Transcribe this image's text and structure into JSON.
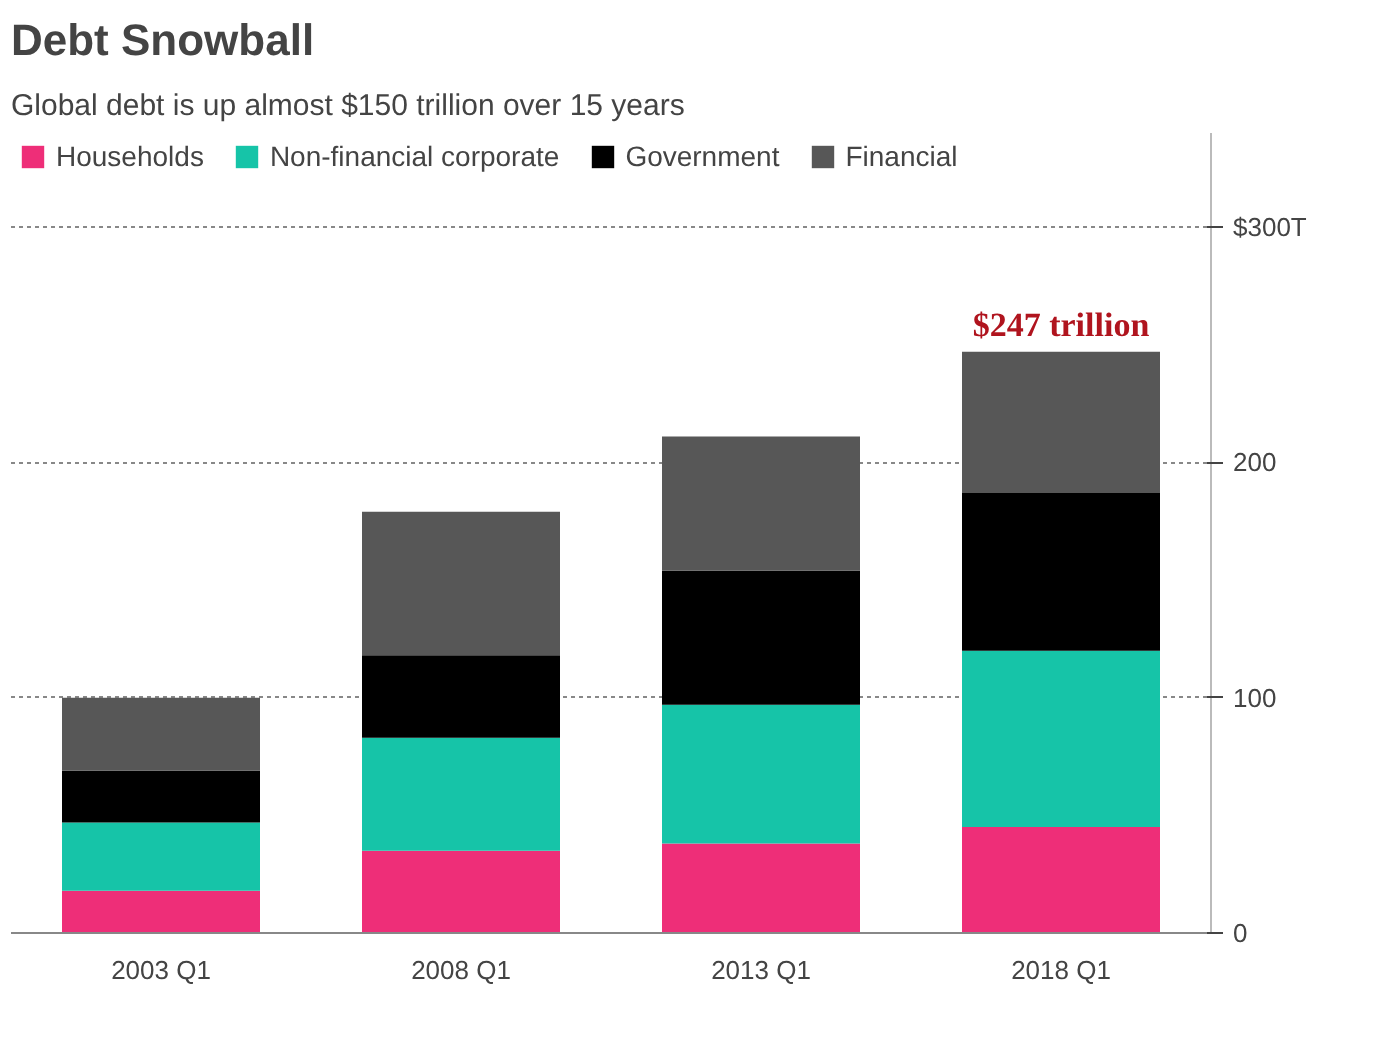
{
  "chart_data": {
    "type": "bar",
    "title": "Debt Snowball",
    "subtitle": "Global debt is up almost $150 trillion over 15 years",
    "categories": [
      "2003 Q1",
      "2008 Q1",
      "2013 Q1",
      "2018 Q1"
    ],
    "stacked": true,
    "series": [
      {
        "name": "Households",
        "color": "#ee2e78",
        "values": [
          18,
          35,
          38,
          45
        ]
      },
      {
        "name": "Non-financial corporate",
        "color": "#16c4a8",
        "values": [
          29,
          48,
          59,
          75
        ]
      },
      {
        "name": "Government",
        "color": "#000000",
        "values": [
          22,
          35,
          57,
          67
        ]
      },
      {
        "name": "Financial",
        "color": "#575757",
        "values": [
          31,
          61,
          57,
          60
        ]
      }
    ],
    "ylim": [
      0,
      340
    ],
    "yticks": [
      0,
      100,
      200,
      {
        "value": 300,
        "label": "$300T"
      }
    ],
    "grid": "y",
    "legend": "top left",
    "annotations": [
      {
        "text": "$247 trillion",
        "x": "2018 Q1",
        "y": 247
      }
    ]
  }
}
